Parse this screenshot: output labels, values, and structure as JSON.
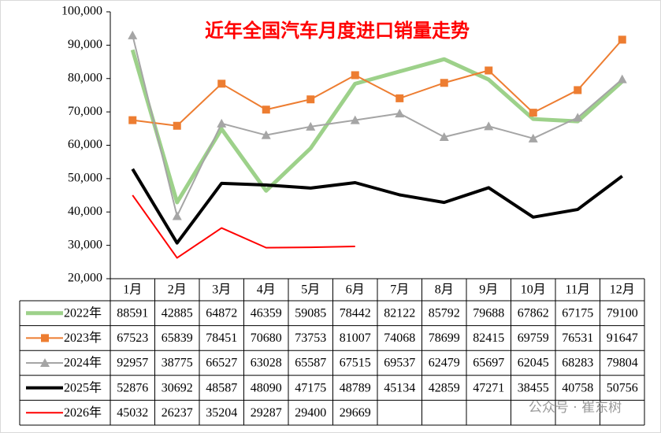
{
  "chart_data": {
    "type": "line",
    "title": "近年全国汽车月度进口销量走势",
    "watermark": "公众号 · 崔东树",
    "categories": [
      "1月",
      "2月",
      "3月",
      "4月",
      "5月",
      "6月",
      "7月",
      "8月",
      "9月",
      "10月",
      "11月",
      "12月"
    ],
    "ylim": [
      20000,
      100000
    ],
    "yticks": [
      {
        "value": 20000,
        "label": "20,000"
      },
      {
        "value": 30000,
        "label": "30,000"
      },
      {
        "value": 40000,
        "label": "40,000"
      },
      {
        "value": 50000,
        "label": "50,000"
      },
      {
        "value": 60000,
        "label": "60,000"
      },
      {
        "value": 70000,
        "label": "70,000"
      },
      {
        "value": 80000,
        "label": "80,000"
      },
      {
        "value": 90000,
        "label": "90,000"
      },
      {
        "value": 100000,
        "label": "100,000"
      }
    ],
    "grid": false,
    "series": [
      {
        "name": "2022年",
        "color": "#9dd18a",
        "line_width": 5,
        "marker": null,
        "values": [
          88591,
          42885,
          64872,
          46359,
          59085,
          78442,
          82122,
          85792,
          79688,
          67862,
          67175,
          79100
        ]
      },
      {
        "name": "2023年",
        "color": "#ed7d31",
        "line_width": 2,
        "marker": "square",
        "values": [
          67523,
          65839,
          78451,
          70680,
          73753,
          81007,
          74068,
          78699,
          82415,
          69759,
          76531,
          91647
        ]
      },
      {
        "name": "2024年",
        "color": "#a5a5a5",
        "line_width": 2,
        "marker": "triangle",
        "values": [
          92957,
          38775,
          66527,
          63028,
          65587,
          67515,
          69537,
          62479,
          65697,
          62045,
          68283,
          79804
        ]
      },
      {
        "name": "2025年",
        "color": "#000000",
        "line_width": 4,
        "marker": null,
        "values": [
          52876,
          30692,
          48587,
          48090,
          47175,
          48789,
          45134,
          42859,
          47271,
          38455,
          40758,
          50756
        ]
      },
      {
        "name": "2026年",
        "color": "#ff0000",
        "line_width": 2,
        "marker": null,
        "values": [
          45032,
          26237,
          35204,
          29287,
          29400,
          29669,
          null,
          null,
          null,
          null,
          null,
          null
        ]
      }
    ]
  }
}
